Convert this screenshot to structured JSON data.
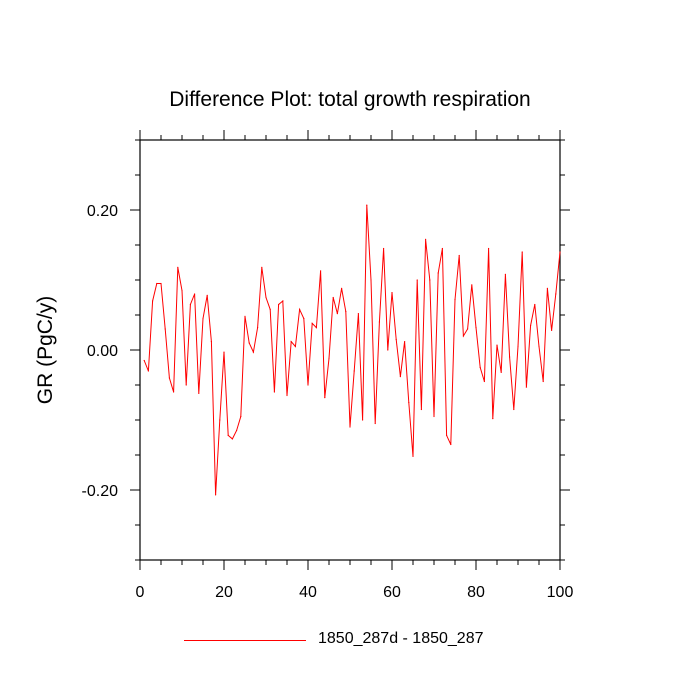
{
  "chart_data": {
    "type": "line",
    "title": "Difference Plot: total growth respiration",
    "xlabel": "",
    "ylabel": "GR  (PgC/y)",
    "xlim": [
      0,
      100
    ],
    "ylim": [
      -0.3,
      0.3
    ],
    "x_ticks": [
      0,
      20,
      40,
      60,
      80,
      100
    ],
    "x_tick_labels": [
      "0",
      "20",
      "40",
      "60",
      "80",
      "100"
    ],
    "y_ticks": [
      -0.2,
      0.0,
      0.2
    ],
    "y_tick_labels": [
      "-0.20",
      "0.00",
      "0.20"
    ],
    "grid": false,
    "legend": "bottom",
    "series": [
      {
        "name": "1850_287d - 1850_287",
        "color": "#ff0000",
        "x": [
          1,
          2,
          3,
          4,
          5,
          6,
          7,
          8,
          9,
          10,
          11,
          12,
          13,
          14,
          15,
          16,
          17,
          18,
          19,
          20,
          21,
          22,
          23,
          24,
          25,
          26,
          27,
          28,
          29,
          30,
          31,
          32,
          33,
          34,
          35,
          36,
          37,
          38,
          39,
          40,
          41,
          42,
          43,
          44,
          45,
          46,
          47,
          48,
          49,
          50,
          51,
          52,
          53,
          54,
          55,
          56,
          57,
          58,
          59,
          60,
          61,
          62,
          63,
          64,
          65,
          66,
          67,
          68,
          69,
          70,
          71,
          72,
          73,
          74,
          75,
          76,
          77,
          78,
          79,
          80,
          81,
          82,
          83,
          84,
          85,
          86,
          87,
          88,
          89,
          90,
          91,
          92,
          93,
          94,
          95,
          96,
          97,
          98,
          99,
          100
        ],
        "values": [
          -0.015,
          -0.03,
          0.07,
          0.095,
          0.095,
          0.03,
          -0.04,
          -0.06,
          0.118,
          0.085,
          -0.05,
          0.065,
          0.08,
          -0.062,
          0.045,
          0.078,
          0.012,
          -0.207,
          -0.1,
          -0.003,
          -0.122,
          -0.127,
          -0.115,
          -0.095,
          0.048,
          0.01,
          -0.003,
          0.032,
          0.118,
          0.075,
          0.058,
          -0.06,
          0.065,
          0.07,
          -0.065,
          0.012,
          0.005,
          0.058,
          0.045,
          -0.05,
          0.038,
          0.032,
          0.113,
          -0.068,
          -0.012,
          0.075,
          0.052,
          0.088,
          0.055,
          -0.11,
          -0.03,
          0.052,
          -0.1,
          0.207,
          0.1,
          -0.105,
          0.04,
          0.145,
          0.0,
          0.082,
          0.015,
          -0.038,
          0.012,
          -0.075,
          -0.152,
          0.1,
          -0.085,
          0.158,
          0.1,
          -0.095,
          0.11,
          0.145,
          -0.122,
          -0.135,
          0.072,
          0.135,
          0.02,
          0.03,
          0.093,
          0.032,
          -0.025,
          -0.045,
          0.145,
          -0.098,
          0.007,
          -0.032,
          0.108,
          -0.01,
          -0.085,
          0.005,
          0.14,
          -0.053,
          0.035,
          0.065,
          0.005,
          -0.045,
          0.088,
          0.028,
          0.08,
          0.14
        ]
      }
    ]
  }
}
